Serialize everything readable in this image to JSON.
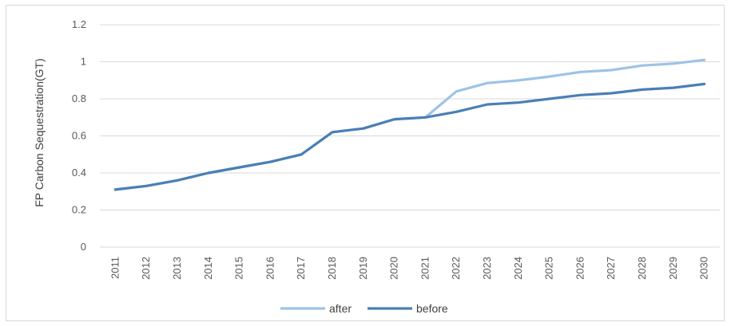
{
  "chart_data": {
    "type": "line",
    "title": "",
    "xlabel": "",
    "ylabel": "FP Carbon Sequestration(GT)",
    "ylim": [
      0,
      1.2
    ],
    "yticks": [
      "0",
      "0.2",
      "0.4",
      "0.6",
      "0.8",
      "1",
      "1.2"
    ],
    "grid": true,
    "legend_position": "bottom",
    "categories": [
      "2011",
      "2012",
      "2013",
      "2014",
      "2015",
      "2016",
      "2017",
      "2018",
      "2019",
      "2020",
      "2021",
      "2022",
      "2023",
      "2024",
      "2025",
      "2026",
      "2027",
      "2028",
      "2029",
      "2030"
    ],
    "series": [
      {
        "name": "after",
        "color": "#9dc3e6",
        "values": [
          0.31,
          0.33,
          0.36,
          0.4,
          0.43,
          0.46,
          0.5,
          0.62,
          0.64,
          0.69,
          0.7,
          0.84,
          0.885,
          0.9,
          0.92,
          0.945,
          0.955,
          0.98,
          0.99,
          1.01
        ]
      },
      {
        "name": "before",
        "color": "#4a7fb5",
        "values": [
          0.31,
          0.33,
          0.36,
          0.4,
          0.43,
          0.46,
          0.5,
          0.62,
          0.64,
          0.69,
          0.7,
          0.73,
          0.77,
          0.78,
          0.8,
          0.82,
          0.83,
          0.85,
          0.86,
          0.88
        ]
      }
    ]
  }
}
